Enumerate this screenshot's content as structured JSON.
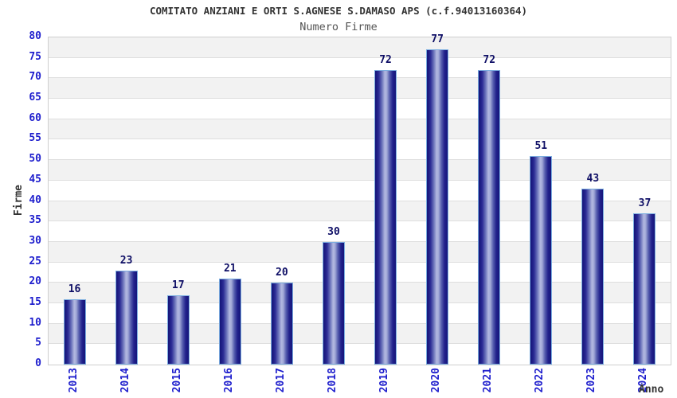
{
  "chart_data": {
    "type": "bar",
    "title": "COMITATO ANZIANI E ORTI S.AGNESE S.DAMASO APS (c.f.94013160364)",
    "subtitle": "Numero Firme",
    "xlabel": "Anno",
    "ylabel": "Firme",
    "categories": [
      "2013",
      "2014",
      "2015",
      "2016",
      "2017",
      "2018",
      "2019",
      "2020",
      "2021",
      "2022",
      "2023",
      "2024"
    ],
    "values": [
      16,
      23,
      17,
      21,
      20,
      30,
      72,
      77,
      72,
      51,
      43,
      37
    ],
    "ylim": [
      0,
      80
    ],
    "ytick_step": 5,
    "legend": "none",
    "grid": "horizontal-bands-alternating",
    "xtick_rotation_deg": 90,
    "colors": {
      "tick_label": "#1e1ecd",
      "value_label": "#0f0f66",
      "title": "#333333",
      "subtitle": "#555555",
      "bar_dark": "#15157a",
      "bar_light": "#b2b8e0",
      "bar_border": "#7aade0",
      "band_gray": "#f2f2f2",
      "gridline": "#dedede",
      "plot_border": "#cfcfcf"
    }
  }
}
